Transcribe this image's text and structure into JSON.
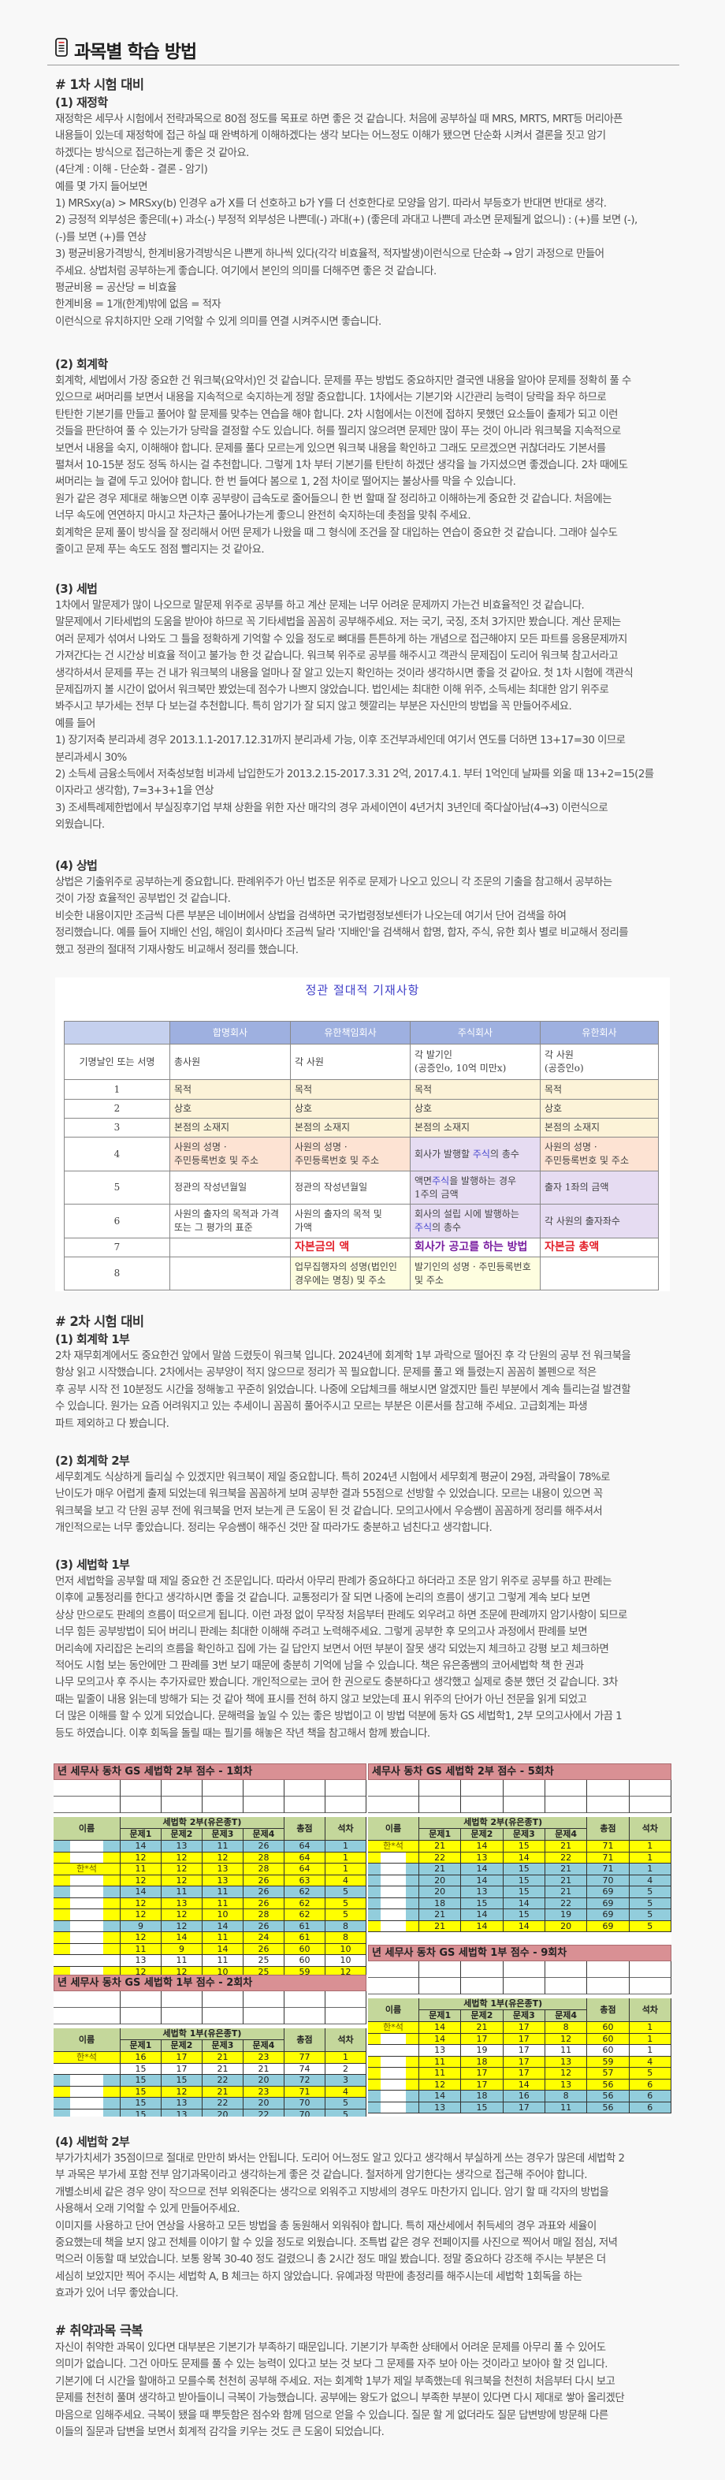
{
  "title": "과목별 학습 방법",
  "icon": "document-icon",
  "exam1": {
    "heading": "# 1차 시험 대비",
    "s1": {
      "heading": "(1) 재정학",
      "lines": [
        "재정학은 세무사 시험에서 전략과목으로 80점 정도를 목표로 하면 좋은 것 같습니다. 처음에 공부하실 때 MRS, MRTS, MRT등 머리아픈",
        "내용들이 있는데 재정학에 접근 하실 때 완벽하게 이해하겠다는 생각 보다는 어느정도 이해가 됐으면 단순화 시켜서 결론을 짓고 암기",
        "하겠다는 방식으로 접근하는게 좋은 것 같아요.",
        "(4단계 : 이해 - 단순화 - 결론 - 암기)",
        "예를 몇 가지 들어보면",
        "1) MRSxy(a) > MRSxy(b) 인경우 a가 X를 더 선호하고 b가 Y를 더 선호한다로 모양을 암기. 따라서 부등호가 반대면 반대로 생각.",
        "2) 긍정적 외부성은 좋은데(+) 과소(-) 부정적 외부성은 나쁜데(-) 과대(+) (좋은데 과대고 나쁜데 과소면 문제될게 없으니) : (+)를 보면 (-),",
        "(-)를 보면 (+)를 연상",
        "3) 평균비용가격방식, 한계비용가격방식은 나쁜게 하나씩 있다(각각 비효율적, 적자발생)이런식으로 단순화 → 암기 과정으로 만들어",
        "주세요. 상법처럼 공부하는게 좋습니다. 여기에서 본인의 의미를 더해주면 좋은 것 같습니다.",
        "평균비용 = 공산당 = 비효율",
        "한계비용 = 1개(한계)밖에 없음 = 적자",
        "이런식으로 유치하지만 오래 기억할 수 있게 의미를 연결 시켜주시면 좋습니다."
      ]
    },
    "s2": {
      "heading": "(2) 회계학",
      "lines": [
        "회계학, 세법에서 가장 중요한 건 워크북(요약서)인 것 같습니다. 문제를 푸는 방법도 중요하지만 결국엔 내용을 알아야 문제를 정확히 풀 수",
        "있으므로 써머리를 보면서 내용을 지속적으로 숙지하는게 정말 중요합니다. 1차에서는 기본기와 시간관리 능력이 당락을 좌우 하므로",
        "탄탄한 기본기를 만들고 풀어야 할 문제를 맞추는 연습을 해야 합니다. 2차 시험에서는 이전에 접하지 못했던 요소들이 출제가 되고 이런",
        "것들을 판단하여 풀 수 있는가가 당락을 결정할 수도 있습니다. 허를 찔리지 않으려면 문제만 많이 푸는 것이 아니라 워크북을 지속적으로",
        "보면서 내용을 숙지, 이해해야 합니다. 문제를 풀다 모르는게 있으면 워크북 내용을 확인하고 그래도 모르겠으면 귀찮더라도 기본서를",
        "펼쳐서 10-15분 정도 정독 하시는 걸 추천합니다. 그렇게 1차 부터 기본기를 탄탄히 하겠단 생각을 늘 가지셨으면 좋겠습니다. 2차 때에도",
        "써머리는 늘 곁에 두고 있어야 합니다. 한 번 들여다 봄으로 1, 2점 차이로 떨어지는 불상사를 막을 수 있습니다.",
        "원가 같은 경우 제대로 해놓으면 이후 공부량이 급속도로 줄어들으니 한 번 할때 잘 정리하고 이해하는게 중요한 것 같습니다. 처음에는",
        "너무 속도에 연연하지 마시고 차근차근 풀어나가는게 좋으니 완전히 숙지하는데 촛점을 맞춰 주세요.",
        "회계학은 문제 풀이 방식을 잘 정리해서 어떤 문제가 나왔을 때 그 형식에 조건을 잘 대입하는 연습이 중요한 것 같습니다. 그래야 실수도",
        "줄이고 문제 푸는 속도도 점점 빨리지는 것 같아요."
      ]
    },
    "s3": {
      "heading": "(3) 세법",
      "lines": [
        "1차에서 말문제가 많이 나오므로 말문제 위주로 공부를 하고 계산 문제는 너무 어려운 문제까지 가는건 비효율적인 것 같습니다.",
        "말문제에서 기타세법의 도움을 받아야 하므로 꼭 기타세법을 꼼꼼히 공부해주세요. 저는 국기, 국징, 조처 3가지만 봤습니다. 계산 문제는",
        "여러 문제가 섞여서 나와도 그 틀을 정확하게 기억할 수 있을 정도로 뼈대를 튼튼하게 하는 개념으로 접근해야지 모든 파트를 응용문제까지",
        "가져간다는 건 시간상 비효율 적이고 불가능 한 것 같습니다. 워크북 위주로 공부를 해주시고 객관식 문제집이 도리어 워크북 참고서라고",
        "생각하셔서 문제를 푸는 건 내가 워크북의 내용을 얼마나 잘 알고 있는지 확인하는 것이라 생각하시면 좋을 것 같아요. 첫 1차 시험에 객관식",
        "문제집까지 볼 시간이 없어서 워크북만 봤었는데 점수가 나쁘지 않았습니다. 법인세는 최대한 이해 위주, 소득세는 최대한 암기 위주로",
        "봐주시고 부가세는 전부 다 보는걸 추천합니다. 특히 암기가 잘 되지 않고 헷깔리는 부분은 자신만의 방법을 꼭 만들어주세요.",
        "예를 들어",
        "1) 장기저축 분리과세 경우 2013.1.1-2017.12.31까지 분리과세 가능, 이후 조건부과세인데 여기서 연도를 더하면 13+17=30 이므로",
        "분리과세시 30%",
        "2) 소득세 금융소득에서 저축성보험 비과세 납입한도가 2013.2.15-2017.3.31 2억, 2017.4.1. 부터 1억인데 날짜를 외울 때 13+2=15(2를",
        "이자라고 생각함), 7=3+3+1을 연상",
        "3) 조세특례제한법에서 부실징후기업 부채 상환을 위한 자산 매각의 경우 과세이연이 4년거치 3년인데 죽다살아남(4→3) 이런식으로",
        "외웠습니다."
      ]
    },
    "s4": {
      "heading": "(4) 상법",
      "lines": [
        "상법은 기출위주로 공부하는게 중요합니다. 판례위주가 아닌 법조문 위주로 문제가 나오고 있으니 각 조문의 기출을 참고해서 공부하는",
        "것이 가장 효율적인 공부법인 것 같습니다.",
        "비슷한 내용이지만 조금씩 다른 부분은 네이버에서 상법을 검색하면 국가법령정보센터가 나오는데 여기서 단어 검색을 하여",
        "정리했습니다. 예를 들어 지배인 선임, 해임이 회사마다 조금씩 달라 '지배인'을 검색해서 합명, 합자, 주식, 유한 회사 별로 비교해서 정리를",
        "했고 정관의 절대적 기재사항도 비교해서 정리를 했습니다."
      ]
    }
  },
  "charter_table": {
    "title": "정관 절대적 기재사항",
    "headers": [
      "",
      "합명회사",
      "유한책임회사",
      "주식회사",
      "유한회사"
    ],
    "rows": [
      {
        "label": "기명날인 또는 서명",
        "cells": [
          "총사원",
          "각 사원",
          "각 발기인\n(공증인o, 10억 미만x)",
          "각 사원\n(공증인o)"
        ],
        "colors": [
          "",
          "",
          "",
          ""
        ]
      },
      {
        "label": "1",
        "cells": [
          "목적",
          "목적",
          "목적",
          "목적"
        ],
        "colors": [
          "beige",
          "beige",
          "beige",
          "beige"
        ]
      },
      {
        "label": "2",
        "cells": [
          "상호",
          "상호",
          "상호",
          "상호"
        ],
        "colors": [
          "beige",
          "beige",
          "beige",
          "beige"
        ]
      },
      {
        "label": "3",
        "cells": [
          "본점의 소재지",
          "본점의 소재지",
          "본점의 소재지",
          "본점의 소재지"
        ],
        "colors": [
          "beige",
          "beige",
          "beige",
          "beige"
        ]
      },
      {
        "label": "4",
        "cells": [
          "사원의 성명 ·\n주민등록번호 및 주소",
          "사원의 성명 ·\n주민등록번호 및 주소",
          "회사가 발행할 주식의 총수",
          "사원의 성명 ·\n주민등록번호 및 주소"
        ],
        "colors": [
          "peach",
          "peach",
          "lav",
          "peach"
        ]
      },
      {
        "label": "5",
        "cells": [
          "정관의 작성년월일",
          "정관의 작성년월일",
          "액면주식을 발행하는 경우\n1주의 금액",
          "출자 1좌의 금액"
        ],
        "colors": [
          "",
          "",
          "lav",
          "lav"
        ]
      },
      {
        "label": "6",
        "cells": [
          "사원의 출자의 목적과 가격\n또는 그 평가의 표준",
          "사원의 출자의 목적 및\n가액",
          "회사의 설립 시에 발행하는\n주식의 총수",
          "각 사원의 출자좌수"
        ],
        "colors": [
          "",
          "",
          "lav",
          "lav"
        ]
      },
      {
        "label": "7",
        "cells": [
          "",
          "자본금의 액",
          "회사가 공고를 하는 방법",
          "자본금 총액"
        ],
        "colors": [
          "",
          "red",
          "pur",
          "red"
        ]
      },
      {
        "label": "8",
        "cells": [
          "",
          "업무집행자의 성명(법인인\n경우에는 명칭) 및 주소",
          "발기인의 성명 · 주민등록번호\n및 주소",
          ""
        ],
        "colors": [
          "",
          "ly",
          "ly",
          ""
        ]
      }
    ],
    "highlight_word": "주식"
  },
  "exam2": {
    "heading": "# 2차 시험 대비",
    "s1": {
      "heading": "(1) 회계학 1부",
      "lines": [
        "2차 재무회계에서도 중요한건 앞에서 말씀 드렸듯이 워크북 입니다. 2024년에 회계학 1부 과락으로 떨어진 후 각 단원의 공부 전 워크북을",
        "항상 읽고 시작했습니다. 2차에서는 공부양이 적지 않으므로 정리가 꼭 필요합니다. 문제를 풀고 왜 틀렸는지 꼼꼼히 볼펜으로 적은",
        "후 공부 시작 전 10분정도 시간을 정해놓고 꾸준히 읽었습니다. 나중에 오답체크를 해보시면 알겠지만 틀린 부분에서 계속 틀리는걸 발견할",
        "수 있습니다. 원가는 요즘 어려워지고 있는 추세이니 꼼꼼히 풀어주시고 모르는 부분은 이론서를 참고해 주세요. 고급회계는 파생",
        "파트 제외하고 다 봤습니다."
      ]
    },
    "s2": {
      "heading": "(2) 회계학 2부",
      "lines": [
        "세무회계도 식상하게 들리실 수 있겠지만 워크북이 제일 중요합니다. 특히 2024년 시험에서 세무회계 평균이 29점, 과락율이 78%로",
        "난이도가 매우 어렵게 출제 되었는데 워크북을 꼼꼼하게 보며 공부한 결과 55점으로 선방할 수 있었습니다. 모르는 내용이 있으면 꼭",
        "워크북을 보고 각 단원 공부 전에 워크북을 먼저 보는게 큰 도움이 된 것 같습니다. 모의고사에서 우승쌤이 꼼꼼하게 정리를 해주셔서",
        "개인적으로는 너무 좋았습니다. 정리는 우승쌤이 해주신 것만 잘 따라가도 충분하고 넘친다고 생각합니다."
      ]
    },
    "s3": {
      "heading": "(3) 세법학 1부",
      "lines": [
        "먼저 세법학을 공부할 때 제일 중요한 건 조문입니다. 따라서 아무리 판례가 중요하다고 하더라고 조문 암기 위주로 공부를 하고 판례는",
        "이후에 교통정리를 한다고 생각하시면 좋을 것 같습니다. 교통정리가 잘 되면 나중에 논리의 흐름이 생기고 그렇게 계속 보다 보면",
        "상상 만으로도 판례의 흐름이 떠오르게 됩니다. 이런 과정 없이 무작정 처음부터 판례도 외우려고 하면 조문에 판례까지 암기사항이 되므로",
        "너무 힘든 공부방법이 되어 버리니 판례는 최대한 이해해 주려고 노력해주세요. 그렇게 공부한 후 모의고사 과정에서 판례를 보면",
        "머리속에 자리잡은 논리의 흐름을 확인하고 집에 가는 길 답안지 보면서 어떤 부분이 잘못 생각 되었는지 체크하고 강평 보고 체크하면",
        "적어도 시험 보는 동안에만 그 판례를 3번 보기 때문에 충분히 기억에 남을 수 있습니다. 책은 유은종쌤의 코어세법학 책 한 권과",
        "나무 모의고사 후 주시는 추가자료만 봤습니다. 개인적으로는 코어 한 권으로도 충분하다고 생각했고 실제로 충분 했던 것 같습니다. 3차",
        "때는 밑줄이 내용 읽는데 방해가 되는 것 같아 책에 표시를 전혀 하지 않고 보았는데 표시 위주의 단어가 아닌 전문을 읽게 되었고",
        "더 많은 이해를 할 수 있게 되었습니다. 문해력을 높일 수 있는 좋은 방법이고 이 방법 덕분에 동차 GS 세법학1, 2부 모의고사에서 가끔 1",
        "등도 하였습니다. 이후 회독을 돌릴 때는 필기를 해놓은 작년 책을 참고해서 함께 봤습니다."
      ]
    },
    "s4": {
      "heading": "(4) 세법학 2부",
      "lines": [
        "부가가치세가 35점이므로 절대로 만만히 봐서는 안됩니다. 도리어 어느정도 알고 있다고 생각해서 부실하게 쓰는 경우가 많은데 세법학 2",
        "부 과목은 부가세 포함 전부 암기과목이라고 생각하는게 좋은 것 같습니다. 철저하게 암기한다는 생각으로 접근해 주어야 합니다.",
        "개별소비세 같은 경우 양이 작으므로 전부 외워준다는 생각으로 외워주고 지방세의 경우도 마찬가지 입니다. 암기 할 때 각자의 방법을",
        "사용해서 오래 기억할 수 있게 만들어주세요.",
        "이미지를 사용하고 단어 연상을 사용하고 모든 방법을 총 동원해서 외워줘야 합니다. 특히 재산세에서 취득세의 경우 과표와 세율이",
        "중요했는데 책을 보지 않고 전체를 이야기 할 수 있을 정도로 외웠습니다. 조특법 같은 경우 전페이지를 사진으로 찍어서 매일 점심, 저녁",
        "먹으러 이동할 때 보았습니다. 보통 왕복 30-40 정도 걸렸으니 총 2시간 정도 매일 봤습니다. 정말 중요하다 강조해 주시는 부분은 더",
        "세심히 보았지만 찍어 주시는 세법학 A, B 체크는 하지 않았습니다. 유예과정 막판에 총정리를 해주시는데 세법학 1회독을 하는",
        "효과가 있어 너무 좋았습니다."
      ]
    }
  },
  "weak": {
    "heading": "# 취약과목 극복",
    "lines": [
      "자신이 취약한 과목이 있다면 대부분은 기본기가 부족하기 때문입니다. 기본기가 부족한 상태에서 어려운 문제를 아무리 풀 수 있어도",
      "의미가 없습니다. 그건 아마도 문제를 풀 수 있는 능력이 있다고 보는 것 보다 그 문제를 자주 보아 아는 것이라고 보아야 할 것 입니다.",
      "기본기에 더 시간을 할애하고 모를수록 천천히 공부해 주세요. 저는 회계학 1부가 제일 부족했는데 워크북을 천천히 처음부터 다시 보고",
      "문제를 천천히 풀며 생각하고 받아들이니 극복이 가능했습니다. 공부에는 왕도가 없으니 부족한 부분이 있다면 다시 제대로 쌓아 올리겠단",
      "마음으로 임해주세요. 극복이 됐을 때 뿌듯함은 점수와 함께 덤으로 얻을 수 있습니다. 질문 할 게 없더라도 질문 답변방에 방문해 다른",
      "이들의 질문과 답변을 보면서 회계적 감각을 키우는 것도 큰 도움이 되었습니다."
    ]
  },
  "score_tables": {
    "colors": {
      "title": "#d99094",
      "header": "#c4d79b",
      "Y": "#ffff00",
      "B": "#92cddc",
      "W": "#ffffff"
    },
    "columns": [
      "이름",
      "문제1",
      "문제2",
      "문제3",
      "문제4",
      "총점",
      "석차"
    ],
    "tables": [
      {
        "title": "년 세무사 동차 GS 세법학 2부 점수 - 1회차",
        "subject": "세법학 2부(유은종T)",
        "rows": [
          {
            "name": "",
            "scores": [
              14,
              13,
              11,
              26
            ],
            "total": 64,
            "rank": 1,
            "color": "B"
          },
          {
            "name": "",
            "scores": [
              12,
              12,
              12,
              28
            ],
            "total": 64,
            "rank": 1,
            "color": "Y"
          },
          {
            "name": "한*석",
            "scores": [
              11,
              12,
              13,
              28
            ],
            "total": 64,
            "rank": 1,
            "color": "Y"
          },
          {
            "name": "",
            "scores": [
              12,
              12,
              13,
              26
            ],
            "total": 63,
            "rank": 4,
            "color": "Y"
          },
          {
            "name": "",
            "scores": [
              14,
              11,
              11,
              26
            ],
            "total": 62,
            "rank": 5,
            "color": "B"
          },
          {
            "name": "",
            "scores": [
              12,
              13,
              11,
              26
            ],
            "total": 62,
            "rank": 5,
            "color": "Y"
          },
          {
            "name": "",
            "scores": [
              12,
              12,
              10,
              28
            ],
            "total": 62,
            "rank": 5,
            "color": "Y"
          },
          {
            "name": "",
            "scores": [
              9,
              12,
              14,
              26
            ],
            "total": 61,
            "rank": 8,
            "color": "B"
          },
          {
            "name": "",
            "scores": [
              12,
              14,
              11,
              24
            ],
            "total": 61,
            "rank": 8,
            "color": "Y"
          },
          {
            "name": "",
            "scores": [
              11,
              9,
              14,
              26
            ],
            "total": 60,
            "rank": 10,
            "color": "Y"
          },
          {
            "name": "",
            "scores": [
              13,
              11,
              11,
              25
            ],
            "total": 60,
            "rank": 10,
            "color": "W"
          },
          {
            "name": "",
            "scores": [
              12,
              12,
              10,
              25
            ],
            "total": 59,
            "rank": 12,
            "color": "Y"
          }
        ]
      },
      {
        "title": "년 세무사 동차 GS 세법학 1부 점수 - 2회차",
        "subject": "세법학 1부(유은종T)",
        "rows": [
          {
            "name": "한*석",
            "scores": [
              16,
              17,
              21,
              23
            ],
            "total": 77,
            "rank": 1,
            "color": "Y"
          },
          {
            "name": "",
            "scores": [
              15,
              17,
              21,
              21
            ],
            "total": 74,
            "rank": 2,
            "color": "W"
          },
          {
            "name": "",
            "scores": [
              15,
              15,
              22,
              20
            ],
            "total": 72,
            "rank": 3,
            "color": "B"
          },
          {
            "name": "",
            "scores": [
              15,
              12,
              21,
              23
            ],
            "total": 71,
            "rank": 4,
            "color": "Y"
          },
          {
            "name": "",
            "scores": [
              15,
              13,
              22,
              20
            ],
            "total": 70,
            "rank": 5,
            "color": "B"
          },
          {
            "name": "",
            "scores": [
              15,
              13,
              20,
              22
            ],
            "total": 70,
            "rank": 5,
            "color": "B"
          }
        ]
      },
      {
        "title": "세무사 동차 GS 세법학 2부 점수 - 5회차",
        "subject": "세법학 2부(유은종T)",
        "rows": [
          {
            "name": "한*석",
            "scores": [
              21,
              14,
              15,
              21
            ],
            "total": 71,
            "rank": 1,
            "color": "Y"
          },
          {
            "name": "",
            "scores": [
              22,
              13,
              14,
              22
            ],
            "total": 71,
            "rank": 1,
            "color": "Y"
          },
          {
            "name": "",
            "scores": [
              21,
              14,
              15,
              21
            ],
            "total": 71,
            "rank": 1,
            "color": "B"
          },
          {
            "name": "",
            "scores": [
              20,
              14,
              15,
              21
            ],
            "total": 70,
            "rank": 4,
            "color": "B"
          },
          {
            "name": "",
            "scores": [
              20,
              13,
              15,
              21
            ],
            "total": 69,
            "rank": 5,
            "color": "B"
          },
          {
            "name": "",
            "scores": [
              18,
              15,
              14,
              22
            ],
            "total": 69,
            "rank": 5,
            "color": "B"
          },
          {
            "name": "",
            "scores": [
              21,
              14,
              15,
              19
            ],
            "total": 69,
            "rank": 5,
            "color": "B"
          },
          {
            "name": "",
            "scores": [
              21,
              14,
              14,
              20
            ],
            "total": 69,
            "rank": 5,
            "color": "Y"
          }
        ]
      },
      {
        "title": "년 세무사 동차 GS 세법학 1부 점수 - 9회차",
        "subject": "세법학 1부(유은종T)",
        "rows": [
          {
            "name": "한*석",
            "scores": [
              14,
              21,
              17,
              8
            ],
            "total": 60,
            "rank": 1,
            "color": "Y"
          },
          {
            "name": "",
            "scores": [
              14,
              17,
              17,
              12
            ],
            "total": 60,
            "rank": 1,
            "color": "Y"
          },
          {
            "name": "",
            "scores": [
              13,
              19,
              17,
              11
            ],
            "total": 60,
            "rank": 1,
            "color": "W"
          },
          {
            "name": "",
            "scores": [
              11,
              18,
              17,
              13
            ],
            "total": 59,
            "rank": 4,
            "color": "Y"
          },
          {
            "name": "",
            "scores": [
              11,
              17,
              17,
              12
            ],
            "total": 57,
            "rank": 5,
            "color": "Y"
          },
          {
            "name": "",
            "scores": [
              12,
              17,
              14,
              13
            ],
            "total": 56,
            "rank": 6,
            "color": "Y"
          },
          {
            "name": "",
            "scores": [
              14,
              18,
              16,
              8
            ],
            "total": 56,
            "rank": 6,
            "color": "B"
          },
          {
            "name": "",
            "scores": [
              13,
              15,
              17,
              11
            ],
            "total": 56,
            "rank": 6,
            "color": "B"
          }
        ]
      }
    ]
  }
}
